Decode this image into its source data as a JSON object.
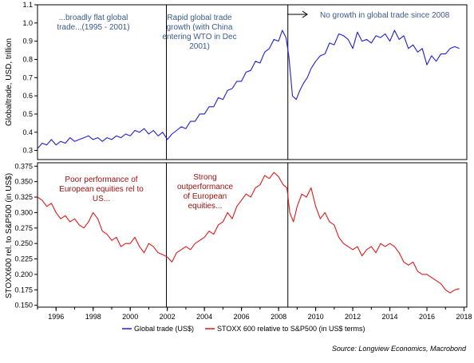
{
  "chart_data": [
    {
      "type": "line",
      "panel": "top",
      "ylabel": "Globaltrade, USD, trillion",
      "ylim": [
        0.25,
        1.1
      ],
      "yticks": [
        "0.3",
        "0.4",
        "0.5",
        "0.6",
        "0.7",
        "0.8",
        "0.9",
        "1.0",
        "1.1"
      ],
      "ytick_values": [
        0.3,
        0.4,
        0.5,
        0.6,
        0.7,
        0.8,
        0.9,
        1.0,
        1.1
      ],
      "xlim": [
        1995.0,
        2018.15
      ],
      "color": "#1f1fd8",
      "annotations": [
        "...broadly flat global trade...(1995 - 2001)",
        "Rapid global trade growth (with China entering WTO in Dec 2001)",
        "No growth in global trade since 2008"
      ],
      "annotation_lines": [
        [
          "...broadly flat global",
          "trade...(1995 - 2001)"
        ],
        [
          "Rapid global trade",
          "growth (with China",
          "entering WTO in Dec",
          "2001)"
        ],
        [
          "No growth in global trade since 2008"
        ]
      ],
      "series": [
        {
          "name": "Global trade (US$)",
          "x": [
            1995.0,
            1995.25,
            1995.5,
            1995.75,
            1996.0,
            1996.25,
            1996.5,
            1996.75,
            1997.0,
            1997.25,
            1997.5,
            1997.75,
            1998.0,
            1998.25,
            1998.5,
            1998.75,
            1999.0,
            1999.25,
            1999.5,
            1999.75,
            2000.0,
            2000.25,
            2000.5,
            2000.75,
            2001.0,
            2001.25,
            2001.5,
            2001.75,
            2002.0,
            2002.25,
            2002.5,
            2002.75,
            2003.0,
            2003.25,
            2003.5,
            2003.75,
            2004.0,
            2004.25,
            2004.5,
            2004.75,
            2005.0,
            2005.25,
            2005.5,
            2005.75,
            2006.0,
            2006.25,
            2006.5,
            2006.75,
            2007.0,
            2007.25,
            2007.5,
            2007.75,
            2008.0,
            2008.2,
            2008.4,
            2008.55,
            2008.75,
            2008.95,
            2009.15,
            2009.35,
            2009.55,
            2009.75,
            2010.0,
            2010.25,
            2010.5,
            2010.75,
            2011.0,
            2011.25,
            2011.5,
            2011.75,
            2012.0,
            2012.25,
            2012.5,
            2012.75,
            2013.0,
            2013.25,
            2013.5,
            2013.75,
            2014.0,
            2014.25,
            2014.5,
            2014.75,
            2015.0,
            2015.25,
            2015.5,
            2015.75,
            2016.0,
            2016.25,
            2016.5,
            2016.75,
            2017.0,
            2017.25,
            2017.5,
            2017.75
          ],
          "values": [
            0.31,
            0.34,
            0.33,
            0.36,
            0.33,
            0.35,
            0.34,
            0.37,
            0.35,
            0.36,
            0.37,
            0.38,
            0.36,
            0.37,
            0.35,
            0.37,
            0.36,
            0.38,
            0.37,
            0.39,
            0.38,
            0.41,
            0.4,
            0.42,
            0.39,
            0.41,
            0.38,
            0.4,
            0.36,
            0.39,
            0.41,
            0.43,
            0.42,
            0.46,
            0.46,
            0.5,
            0.5,
            0.54,
            0.54,
            0.59,
            0.58,
            0.63,
            0.64,
            0.68,
            0.68,
            0.73,
            0.74,
            0.79,
            0.78,
            0.84,
            0.86,
            0.91,
            0.9,
            0.96,
            0.92,
            0.82,
            0.6,
            0.58,
            0.63,
            0.67,
            0.7,
            0.75,
            0.79,
            0.82,
            0.83,
            0.89,
            0.88,
            0.94,
            0.93,
            0.91,
            0.86,
            0.95,
            0.9,
            0.91,
            0.89,
            0.93,
            0.92,
            0.94,
            0.9,
            0.96,
            0.91,
            0.93,
            0.86,
            0.88,
            0.84,
            0.86,
            0.77,
            0.82,
            0.79,
            0.83,
            0.83,
            0.86,
            0.87,
            0.86
          ]
        }
      ]
    },
    {
      "type": "line",
      "panel": "bottom",
      "ylabel": "STOXX600 rel. to S&P500 (in US$)",
      "ylim": [
        0.147,
        0.378
      ],
      "yticks": [
        "0.150",
        "0.175",
        "0.200",
        "0.225",
        "0.250",
        "0.275",
        "0.300",
        "0.325",
        "0.350",
        "0.375"
      ],
      "ytick_values": [
        0.15,
        0.175,
        0.2,
        0.225,
        0.25,
        0.275,
        0.3,
        0.325,
        0.35,
        0.375
      ],
      "xlim": [
        1995.0,
        2018.15
      ],
      "xticks": [
        "1996",
        "1998",
        "2000",
        "2002",
        "2004",
        "2006",
        "2008",
        "2010",
        "2012",
        "2014",
        "2016",
        "2018"
      ],
      "xtick_values": [
        1996,
        1998,
        2000,
        2002,
        2004,
        2006,
        2008,
        2010,
        2012,
        2014,
        2016,
        2018
      ],
      "color": "#e01818",
      "annotations": [
        "Poor performance of European equities rel to US...",
        "Strong outperformance of European equities..."
      ],
      "annotation_lines": [
        [
          "Poor performance of",
          "European equities rel to",
          "US..."
        ],
        [
          "Strong",
          "outperformance",
          "of European",
          "equities..."
        ]
      ],
      "series": [
        {
          "name": "STOXX 600 relative to S&P500 (in US$ terms)",
          "x": [
            1995.0,
            1995.25,
            1995.5,
            1995.75,
            1996.0,
            1996.25,
            1996.5,
            1996.75,
            1997.0,
            1997.25,
            1997.5,
            1997.75,
            1998.0,
            1998.25,
            1998.5,
            1998.75,
            1999.0,
            1999.25,
            1999.5,
            1999.75,
            2000.0,
            2000.25,
            2000.5,
            2000.75,
            2001.0,
            2001.25,
            2001.5,
            2001.75,
            2002.0,
            2002.25,
            2002.5,
            2002.75,
            2003.0,
            2003.25,
            2003.5,
            2003.75,
            2004.0,
            2004.25,
            2004.5,
            2004.75,
            2005.0,
            2005.25,
            2005.5,
            2005.75,
            2006.0,
            2006.25,
            2006.5,
            2006.75,
            2007.0,
            2007.25,
            2007.5,
            2007.75,
            2008.0,
            2008.25,
            2008.45,
            2008.6,
            2008.8,
            2009.0,
            2009.25,
            2009.5,
            2009.75,
            2010.0,
            2010.25,
            2010.5,
            2010.75,
            2011.0,
            2011.25,
            2011.5,
            2011.75,
            2012.0,
            2012.25,
            2012.5,
            2012.75,
            2013.0,
            2013.25,
            2013.5,
            2013.75,
            2014.0,
            2014.25,
            2014.5,
            2014.75,
            2015.0,
            2015.25,
            2015.5,
            2015.75,
            2016.0,
            2016.25,
            2016.5,
            2016.75,
            2017.0,
            2017.25,
            2017.5,
            2017.75
          ],
          "values": [
            0.325,
            0.32,
            0.31,
            0.315,
            0.3,
            0.29,
            0.295,
            0.285,
            0.29,
            0.28,
            0.275,
            0.285,
            0.3,
            0.29,
            0.27,
            0.265,
            0.255,
            0.26,
            0.245,
            0.25,
            0.25,
            0.26,
            0.245,
            0.235,
            0.25,
            0.245,
            0.235,
            0.232,
            0.228,
            0.22,
            0.235,
            0.24,
            0.245,
            0.24,
            0.25,
            0.255,
            0.26,
            0.27,
            0.265,
            0.28,
            0.285,
            0.3,
            0.29,
            0.31,
            0.32,
            0.33,
            0.325,
            0.34,
            0.345,
            0.36,
            0.355,
            0.365,
            0.358,
            0.345,
            0.34,
            0.3,
            0.285,
            0.31,
            0.33,
            0.325,
            0.34,
            0.31,
            0.29,
            0.3,
            0.285,
            0.28,
            0.26,
            0.25,
            0.245,
            0.24,
            0.245,
            0.23,
            0.24,
            0.245,
            0.235,
            0.25,
            0.245,
            0.25,
            0.245,
            0.235,
            0.22,
            0.215,
            0.22,
            0.205,
            0.2,
            0.2,
            0.195,
            0.19,
            0.185,
            0.175,
            0.17,
            0.175,
            0.177
          ]
        }
      ]
    }
  ],
  "legend": {
    "items": [
      {
        "label": "Global trade (US$)",
        "color": "#1f1fd8"
      },
      {
        "label": "STOXX 600 relative to S&P500 (in US$ terms)",
        "color": "#e01818"
      }
    ]
  },
  "events": [
    {
      "x": 2001.95
    },
    {
      "x": 2008.5
    }
  ],
  "source": "Source: Longview Economics, Macrobond"
}
